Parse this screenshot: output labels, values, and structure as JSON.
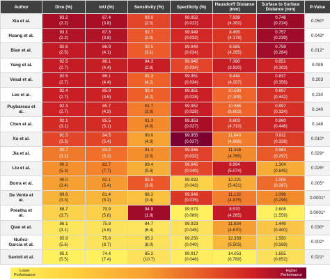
{
  "headers": {
    "author": "Author",
    "dice": "Dice (%)",
    "iou": "IoU (%)",
    "sensitivity": "Sensitivity (%)",
    "specificity": "Specificity (%)",
    "hausdorff": [
      "Hausdorff Distance",
      "(mm)"
    ],
    "surface": [
      "Surface to Surface",
      "Distance (mm)"
    ],
    "pvalue": "P-Value"
  },
  "legend": {
    "low": [
      "Lower",
      "Performance"
    ],
    "high": [
      "Higher",
      "Performance"
    ],
    "colors": [
      "#fff060",
      "#ffd23c",
      "#f8a030",
      "#e85a26",
      "#cf1f24",
      "#7c0030"
    ]
  },
  "rows": [
    {
      "author": [
        "Xia et al."
      ],
      "cells": [
        [
          "93.2",
          "(2.2)",
          "#a80f26"
        ],
        [
          "87.4",
          "(3.8)",
          "#a80f26"
        ],
        [
          "93.6",
          "(2.5)",
          "#e3452a"
        ],
        [
          "99.952",
          "(0.022)",
          "#c71b25"
        ],
        [
          "7.939",
          "(4.282)",
          "#d12825"
        ],
        [
          "0.748",
          "(0.224)",
          "#9c0a2a"
        ]
      ],
      "p": "0.050*"
    },
    {
      "author": [
        "Huang et al."
      ],
      "cells": [
        [
          "93.1",
          "(2.2)",
          "#b01226"
        ],
        [
          "87.3",
          "(3.8)",
          "#b01226"
        ],
        [
          "92.7",
          "(2.9)",
          "#ea5629"
        ],
        [
          "99.949",
          "(0.032)",
          "#d22724"
        ],
        [
          "8.495",
          "(4.178)",
          "#d93625"
        ],
        [
          "0.757",
          "(0.239)",
          "#a00b2a"
        ]
      ],
      "p": "0.043*"
    },
    {
      "author": [
        "Bian et al."
      ],
      "cells": [
        [
          "92.6",
          "(2.5)",
          "#c31a25"
        ],
        [
          "86.9",
          "(4.1)",
          "#bb1726"
        ],
        [
          "92.5",
          "(3.1)",
          "#ec5b29"
        ],
        [
          "99.949",
          "(0.034)",
          "#d22724"
        ],
        [
          "8.585",
          "(4.265)",
          "#da3825"
        ],
        [
          "0.759",
          "(0.264)",
          "#a20c2a"
        ]
      ],
      "p": "0.012*"
    },
    {
      "author": [
        "Yang et al."
      ],
      "cells": [
        [
          "92.5",
          "(2.7)",
          "#c51b25"
        ],
        [
          "86.1",
          "(4.4)",
          "#c51e25"
        ],
        [
          "94.3",
          "(2.8)",
          "#c81c25"
        ],
        [
          "99.945",
          "(0.034)",
          "#e3452a"
        ],
        [
          "7.390",
          "(3.920)",
          "#c51c25"
        ],
        [
          "0.851",
          "(0.303)",
          "#cc2125"
        ]
      ],
      "p": "0.099"
    },
    {
      "author": [
        "Vesal et al."
      ],
      "cells": [
        [
          "92.5",
          "(2.7)",
          "#c51b25"
        ],
        [
          "86.1",
          "(4.4)",
          "#c51e25"
        ],
        [
          "92.3",
          "(4.2)",
          "#ee622a"
        ],
        [
          "99.951",
          "(0.034)",
          "#cc1f25"
        ],
        [
          "9.444",
          "(4.207)",
          "#e3462a"
        ],
        [
          "0.837",
          "(0.356)",
          "#c41a25"
        ]
      ],
      "p": "0.203"
    },
    {
      "author": [
        "Lee et al."
      ],
      "cells": [
        [
          "92.4",
          "(2.7)",
          "#ca1e25"
        ],
        [
          "85.9",
          "(4.5)",
          "#cb2125"
        ],
        [
          "92.4",
          "(4.2)",
          "#ed5f29"
        ],
        [
          "99.951",
          "(0.028)",
          "#cc1f25"
        ],
        [
          "10.593",
          "(7.109)",
          "#ee642a"
        ],
        [
          "0.897",
          "(0.442)",
          "#d62f25"
        ]
      ],
      "p": "0.230"
    },
    {
      "author": [
        "Puybareau et",
        "al."
      ],
      "cells": [
        [
          "92.3",
          "(2.7)",
          "#cd2125"
        ],
        [
          "85.7",
          "(4.3)",
          "#cf2625"
        ],
        [
          "91.7",
          "(3.9)",
          "#f27c2c"
        ],
        [
          "99.952",
          "(0.028)",
          "#c71b25"
        ],
        [
          "10.555",
          "(6.603)",
          "#ee632a"
        ],
        [
          "0.897",
          "(0.324)",
          "#d62f25"
        ]
      ],
      "p": "0.140"
    },
    {
      "author": [
        "Chen et al."
      ],
      "cells": [
        [
          "92.1",
          "(3.1)",
          "#d42a25"
        ],
        [
          "85.5",
          "(5.1)",
          "#d42c25"
        ],
        [
          "91.3",
          "(4.6)",
          "#f38a2d"
        ],
        [
          "99.953",
          "(0.027)",
          "#a80f26"
        ],
        [
          "8.603",
          "(4.710)",
          "#da3a25"
        ],
        [
          "0.860",
          "(0.448)",
          "#cc2225"
        ]
      ],
      "p": "0.148"
    },
    {
      "author": [
        "Xu et al."
      ],
      "cells": [
        [
          "91.5",
          "(3.3)",
          "#e3452a"
        ],
        [
          "84.5",
          "(5.4)",
          "#e24428"
        ],
        [
          "90.0",
          "(4.9)",
          "#f6a334"
        ],
        [
          "99.955",
          "(0.027)",
          "#7c0030"
        ],
        [
          "11.043",
          "(4.668)",
          "#f17a2c"
        ],
        [
          "0.911",
          "(0.326)",
          "#db3c26"
        ]
      ],
      "p": "0.010*"
    },
    {
      "author": [
        "Jia et al."
      ],
      "cells": [
        [
          "90.7",
          "(3.1)",
          "#f07a2c"
        ],
        [
          "83.2",
          "(5.2)",
          "#ef6f2b"
        ],
        [
          "91.1",
          "(3.5)",
          "#f48f2e"
        ],
        [
          "99.946",
          "(0.032)",
          "#e0412a"
        ],
        [
          "11.326",
          "(4.765)",
          "#f28a2e"
        ],
        [
          "0.963",
          "(0.297)",
          "#e85a29"
        ]
      ],
      "p": "0.029*"
    },
    {
      "author": [
        "Liu et al."
      ],
      "cells": [
        [
          "90.3",
          "(5.3)",
          "#f4902e"
        ],
        [
          "82.7",
          "(7.7)",
          "#f3842d"
        ],
        [
          "89.4",
          "(5.8)",
          "#f7b037"
        ],
        [
          "99.945",
          "(0.040)",
          "#e3452a"
        ],
        [
          "8.894",
          "(5.074)",
          "#c41a25"
        ],
        [
          "1.304",
          "(0.845)",
          "#f7ac36"
        ]
      ],
      "p": "0.025*"
    },
    {
      "author": [
        "Borra et al."
      ],
      "cells": [
        [
          "90.0",
          "(3.4)",
          "#f6a034"
        ],
        [
          "82.1",
          "(5.4)",
          "#f59a32"
        ],
        [
          "92.6",
          "(3.8)",
          "#eb5729"
        ],
        [
          "99.932",
          "(0.043)",
          "#fdd14a"
        ],
        [
          "12.221",
          "(5.421)",
          "#f8ac37"
        ],
        [
          "1.005",
          "(0.287)",
          "#ee6a2b"
        ]
      ],
      "p": "0.005*"
    },
    {
      "author": [
        "De Vente et",
        "al."
      ],
      "cells": [
        [
          "89.6",
          "(3.3)",
          "#f7b238"
        ],
        [
          "81.4",
          "(5.3)",
          "#f8b63a"
        ],
        [
          "88.2",
          "(3.4)",
          "#fac141"
        ],
        [
          "99.948",
          "(0.035)",
          "#d93625"
        ],
        [
          "11.132",
          "(4.875)",
          "#f17e2c"
        ],
        [
          "1.096",
          "(0.296)",
          "#f28a2e"
        ]
      ],
      "p": "0.0001*"
    },
    {
      "author": [
        "Preetha et",
        "al."
      ],
      "cells": [
        [
          "88.7",
          "(3.7)",
          "#fbd24b"
        ],
        [
          "79.9",
          "(5.8)",
          "#fbcf49"
        ],
        [
          "94.9",
          "(1.9)",
          "#a00b2a"
        ],
        [
          "99.873",
          "(0.089)",
          "#fff060"
        ],
        [
          "8.570",
          "(4.265)",
          "#c41a25"
        ],
        [
          "2.608",
          "(1.559)",
          "#fff060"
        ]
      ],
      "p": "0.0001*"
    },
    {
      "author": [
        "Qiao et al."
      ],
      "cells": [
        [
          "86.1",
          "(3.1)",
          "#fde55c"
        ],
        [
          "75.8",
          "(4.6)",
          "#fde35b"
        ],
        [
          "84.7",
          "(6.4)",
          "#fde45c"
        ],
        [
          "99.923",
          "(0.045)",
          "#fee15a"
        ],
        [
          "11.834",
          "(4.670)",
          "#f59e33"
        ],
        [
          "1.449",
          "(0.400)",
          "#fac547"
        ]
      ],
      "p": "0.030*"
    },
    {
      "author": [
        "Nuñez-",
        "Garcia et al."
      ],
      "cells": [
        [
          "85.9",
          "(5.6)",
          "#fee85e"
        ],
        [
          "75.8",
          "(8.7)",
          "#fde35b"
        ],
        [
          "85.2",
          "(8.0)",
          "#fde15a"
        ],
        [
          "99.250",
          "(0.040)",
          "#fee65d"
        ],
        [
          "12.359",
          "(5.503)",
          "#f9b73b"
        ],
        [
          "1.550",
          "(0.569)",
          "#fbd04b"
        ]
      ],
      "p": "0.002*"
    },
    {
      "author": [
        "Savioli et al."
      ],
      "cells": [
        [
          "85.1",
          "(5.5)",
          "#fff060"
        ],
        [
          "74.4",
          "(7.4)",
          "#fff060"
        ],
        [
          "85.2",
          "(10.7)",
          "#fde15a"
        ],
        [
          "99.917",
          "(0.048)",
          "#ffec5f"
        ],
        [
          "14.053",
          "(6.789)",
          "#fff060"
        ],
        [
          "1.655",
          "(0.652)",
          "#fde05a"
        ]
      ],
      "p": "0.021*"
    }
  ]
}
